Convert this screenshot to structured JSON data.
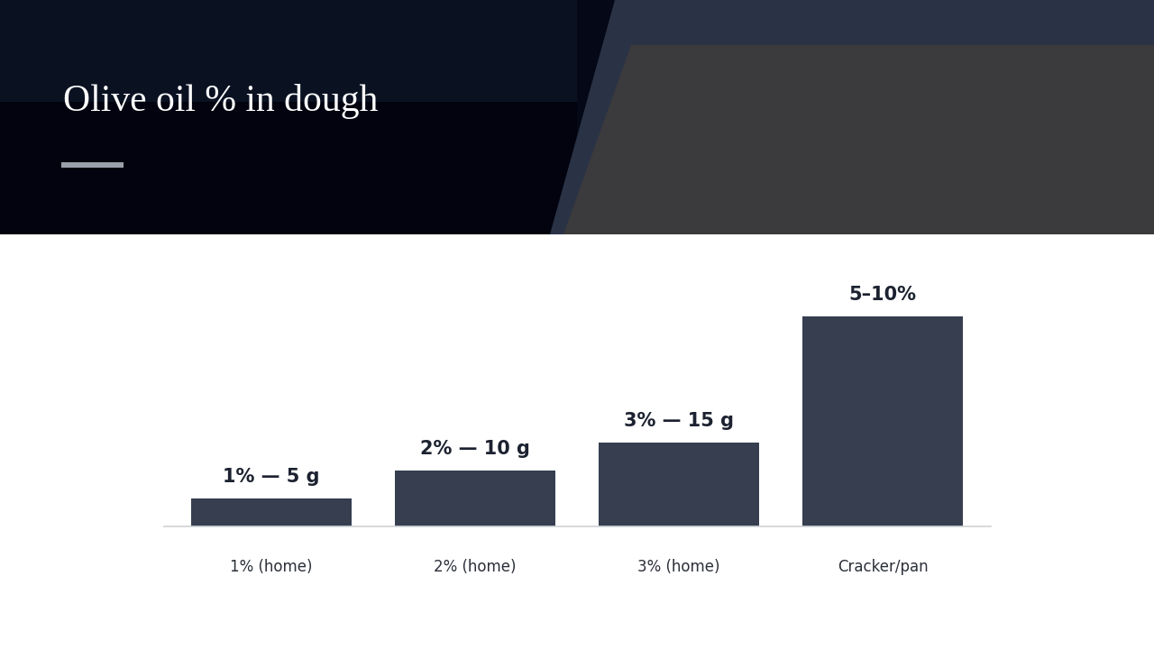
{
  "chart_data": {
    "type": "bar",
    "title": "Olive oil % in dough",
    "categories": [
      "1% (home)",
      "2% (home)",
      "3% (home)",
      "Cracker/pan"
    ],
    "values": [
      1,
      2,
      3,
      7.5
    ],
    "value_labels": [
      "1% — 5 g",
      "2% — 10 g",
      "3% — 15 g",
      "5–10%"
    ],
    "data_labels": true,
    "color": "#363e50",
    "ylim": [
      0,
      7.5
    ],
    "tick_labels": "x",
    "grid": false
  }
}
